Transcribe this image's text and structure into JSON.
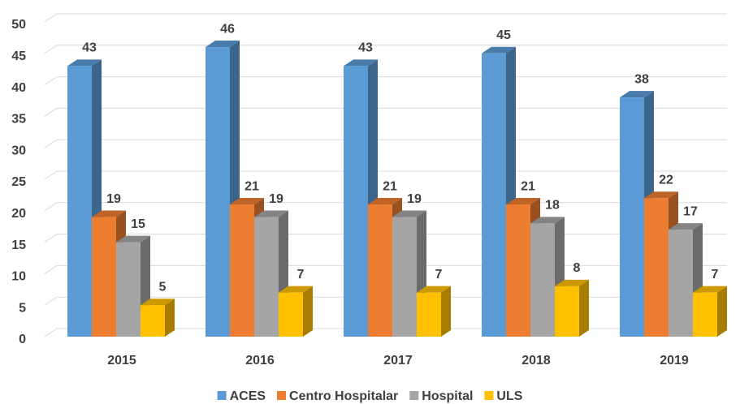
{
  "chart_data": {
    "type": "bar3d",
    "categories": [
      "2015",
      "2016",
      "2017",
      "2018",
      "2019"
    ],
    "series": [
      {
        "name": "ACES",
        "color": "#5b9bd5",
        "values": [
          43,
          46,
          43,
          45,
          38
        ]
      },
      {
        "name": "Centro Hospitalar",
        "color": "#ed7d31",
        "values": [
          19,
          21,
          21,
          21,
          22
        ]
      },
      {
        "name": "Hospital",
        "color": "#a5a5a5",
        "values": [
          15,
          19,
          19,
          18,
          17
        ]
      },
      {
        "name": "ULS",
        "color": "#ffc000",
        "values": [
          5,
          7,
          7,
          8,
          7
        ]
      }
    ],
    "ylim": [
      0,
      50
    ],
    "yticks": [
      0,
      5,
      10,
      15,
      20,
      25,
      30,
      35,
      40,
      45,
      50
    ],
    "grid": true,
    "legend": "bottom"
  }
}
